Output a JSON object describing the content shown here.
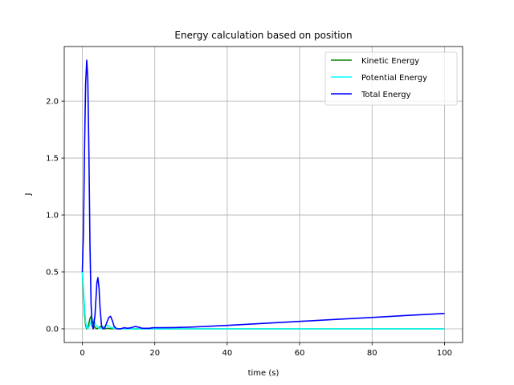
{
  "chart_data": {
    "type": "line",
    "title": "Energy calculation based on position",
    "xlabel": "time (s)",
    "ylabel": "J",
    "xlim": [
      -5,
      105
    ],
    "ylim": [
      -0.12,
      2.48
    ],
    "xticks": [
      0,
      20,
      40,
      60,
      80,
      100
    ],
    "xtick_labels": [
      "0",
      "20",
      "40",
      "60",
      "80",
      "100"
    ],
    "yticks": [
      0.0,
      0.5,
      1.0,
      1.5,
      2.0
    ],
    "ytick_labels": [
      "0.0",
      "0.5",
      "1.0",
      "1.5",
      "2.0"
    ],
    "grid": true,
    "legend": "top-right",
    "series": [
      {
        "name": "Kinetic Energy",
        "color": "#008000",
        "x": [
          0,
          0.3,
          0.6,
          0.9,
          1.2,
          1.5,
          1.8,
          2.1,
          2.4,
          2.7,
          3.0,
          3.5,
          4.0,
          4.5,
          5.0,
          5.5,
          6.0,
          7.0,
          8.0,
          9.0,
          10.0,
          12.0,
          14.0,
          16.0,
          20.0,
          30.0,
          50.0,
          70.0,
          100.0
        ],
        "y": [
          0.5,
          0.3,
          0.12,
          0.03,
          0.0,
          0.01,
          0.05,
          0.09,
          0.11,
          0.09,
          0.05,
          0.01,
          0.0,
          0.01,
          0.02,
          0.01,
          0.0,
          0.005,
          0.0,
          0.003,
          0.0,
          0.002,
          0.0,
          0.001,
          0.0,
          0.0,
          0.0,
          0.0,
          0.0
        ]
      },
      {
        "name": "Potential Energy",
        "color": "#00ffff",
        "x": [
          0,
          0.3,
          0.6,
          0.9,
          1.2,
          1.5,
          2.0,
          2.5,
          3.0,
          3.5,
          4.0,
          5.0,
          6.0,
          7.0,
          8.0,
          10.0,
          15.0,
          20.0,
          40.0,
          60.0,
          80.0,
          100.0
        ],
        "y": [
          0.5,
          0.35,
          0.18,
          0.06,
          0.01,
          0.0,
          0.03,
          0.07,
          0.08,
          0.05,
          0.02,
          0.0,
          0.02,
          0.03,
          0.01,
          0.0,
          0.0,
          0.0,
          0.0,
          0.0,
          0.0,
          0.0
        ]
      },
      {
        "name": "Total Energy",
        "color": "#0000ff",
        "x": [
          0,
          0.3,
          0.6,
          0.9,
          1.2,
          1.5,
          1.8,
          2.1,
          2.4,
          2.7,
          3.0,
          3.5,
          4.0,
          4.3,
          4.6,
          4.9,
          5.3,
          5.7,
          6.2,
          6.8,
          7.3,
          7.8,
          8.3,
          8.8,
          9.5,
          10.5,
          11.5,
          12.5,
          13.5,
          14.5,
          15.5,
          16.5,
          17.5,
          18.5,
          19.5,
          21.0,
          25.0,
          30.0,
          40.0,
          50.0,
          60.0,
          70.0,
          80.0,
          90.0,
          100.0
        ],
        "y": [
          0.5,
          0.85,
          1.6,
          2.15,
          2.36,
          2.2,
          1.55,
          0.75,
          0.22,
          0.03,
          0.0,
          0.12,
          0.4,
          0.45,
          0.36,
          0.18,
          0.03,
          0.0,
          0.01,
          0.06,
          0.1,
          0.11,
          0.07,
          0.02,
          0.0,
          0.0,
          0.01,
          0.005,
          0.01,
          0.02,
          0.015,
          0.005,
          0.005,
          0.005,
          0.01,
          0.01,
          0.011,
          0.015,
          0.03,
          0.048,
          0.065,
          0.083,
          0.1,
          0.118,
          0.135
        ]
      }
    ]
  }
}
